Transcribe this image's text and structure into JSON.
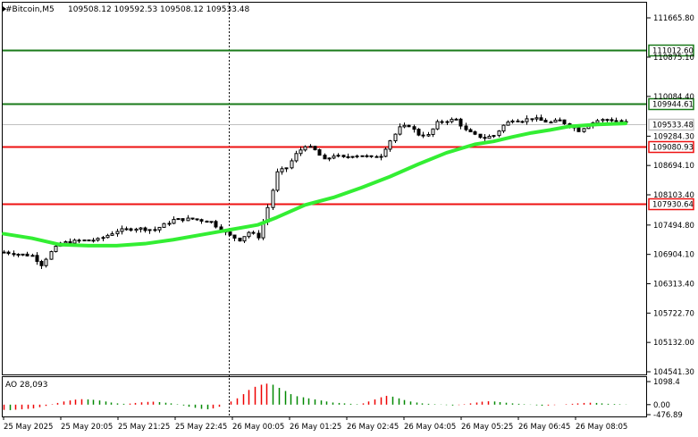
{
  "header": {
    "symbol": "#Bitcoin,M5",
    "ohlc": "109508.12 109592.53 109508.12 109533.48"
  },
  "colors": {
    "candle": "#000000",
    "ma": "#33ee33",
    "resistance": "#1a7a1a",
    "support": "#ee1111",
    "current": "#c0c0c0",
    "ao_up": "#ee0000",
    "ao_down": "#008800"
  },
  "chart_data": [
    {
      "type": "candlestick",
      "y_axis_ticks": [
        "111665.80",
        "110875.10",
        "110084.40",
        "109284.30",
        "108694.10",
        "108103.40",
        "107494.80",
        "106904.10",
        "106313.40",
        "105722.70",
        "105132.00",
        "104541.30"
      ],
      "ylim": [
        104541.3,
        111665.8
      ],
      "x_axis_labels": [
        "25 May 2025",
        "25 May 20:05",
        "25 May 21:25",
        "25 May 22:45",
        "26 May 00:05",
        "26 May 01:25",
        "26 May 02:45",
        "26 May 04:05",
        "26 May 05:25",
        "26 May 06:45",
        "26 May 08:05"
      ],
      "horizontal_levels": [
        {
          "kind": "resistance",
          "label": "111012.60",
          "value": 111012.6
        },
        {
          "kind": "resistance",
          "label": "109944.61",
          "value": 109944.61
        },
        {
          "kind": "current",
          "label": "109533.48",
          "value": 109533.48
        },
        {
          "kind": "support",
          "label": "109080.93",
          "value": 109080.93
        },
        {
          "kind": "support",
          "label": "107930.64",
          "value": 107930.64
        }
      ],
      "price_path": [
        [
          0,
          106950
        ],
        [
          4,
          106900
        ],
        [
          6,
          106880
        ],
        [
          8,
          106700
        ],
        [
          10,
          106950
        ],
        [
          12,
          107130
        ],
        [
          16,
          107180
        ],
        [
          20,
          107200
        ],
        [
          24,
          107380
        ],
        [
          28,
          107430
        ],
        [
          32,
          107400
        ],
        [
          36,
          107600
        ],
        [
          40,
          107620
        ],
        [
          44,
          107560
        ],
        [
          46,
          107400
        ],
        [
          48,
          107280
        ],
        [
          50,
          107200
        ],
        [
          52,
          107350
        ],
        [
          54,
          107260
        ],
        [
          56,
          107850
        ],
        [
          58,
          108550
        ],
        [
          60,
          108650
        ],
        [
          62,
          108920
        ],
        [
          64,
          109100
        ],
        [
          66,
          109000
        ],
        [
          68,
          108800
        ],
        [
          70,
          108900
        ],
        [
          72,
          108850
        ],
        [
          74,
          108900
        ],
        [
          76,
          108900
        ],
        [
          78,
          108850
        ],
        [
          80,
          108900
        ],
        [
          82,
          109200
        ],
        [
          84,
          109450
        ],
        [
          86,
          109500
        ],
        [
          88,
          109320
        ],
        [
          90,
          109300
        ],
        [
          92,
          109550
        ],
        [
          94,
          109600
        ],
        [
          96,
          109620
        ],
        [
          98,
          109400
        ],
        [
          100,
          109300
        ],
        [
          102,
          109250
        ],
        [
          104,
          109300
        ],
        [
          106,
          109500
        ],
        [
          108,
          109620
        ],
        [
          110,
          109600
        ],
        [
          112,
          109650
        ],
        [
          114,
          109600
        ],
        [
          116,
          109560
        ],
        [
          118,
          109600
        ],
        [
          120,
          109500
        ],
        [
          122,
          109400
        ],
        [
          124,
          109520
        ],
        [
          126,
          109600
        ],
        [
          128,
          109620
        ],
        [
          130,
          109600
        ],
        [
          132,
          109560
        ]
      ],
      "moving_average": [
        [
          0,
          107320
        ],
        [
          6,
          107230
        ],
        [
          12,
          107100
        ],
        [
          18,
          107080
        ],
        [
          24,
          107080
        ],
        [
          30,
          107120
        ],
        [
          36,
          107200
        ],
        [
          42,
          107300
        ],
        [
          48,
          107400
        ],
        [
          54,
          107500
        ],
        [
          58,
          107650
        ],
        [
          64,
          107900
        ],
        [
          70,
          108050
        ],
        [
          76,
          108250
        ],
        [
          82,
          108470
        ],
        [
          88,
          108720
        ],
        [
          94,
          108950
        ],
        [
          100,
          109120
        ],
        [
          104,
          109180
        ],
        [
          108,
          109270
        ],
        [
          112,
          109350
        ],
        [
          116,
          109410
        ],
        [
          120,
          109480
        ],
        [
          126,
          109520
        ],
        [
          132,
          109540
        ]
      ]
    },
    {
      "type": "bar",
      "title": "AO 28,093",
      "y_axis_ticks": [
        "1098.4",
        "0.00",
        "-476.89"
      ],
      "ylim": [
        -476.89,
        1098.4
      ],
      "values_sampled": [
        -250,
        -260,
        -240,
        -220,
        -200,
        -180,
        -120,
        -60,
        20,
        80,
        150,
        200,
        240,
        260,
        250,
        230,
        200,
        150,
        100,
        60,
        40,
        50,
        80,
        110,
        130,
        140,
        120,
        90,
        60,
        20,
        -40,
        -100,
        -150,
        -200,
        -220,
        -180,
        -100,
        0,
        150,
        300,
        500,
        700,
        850,
        950,
        1000,
        950,
        800,
        650,
        500,
        400,
        350,
        300,
        250,
        200,
        150,
        100,
        80,
        60,
        40,
        20,
        60,
        150,
        250,
        350,
        420,
        380,
        300,
        220,
        150,
        100,
        60,
        40,
        20,
        10,
        -20,
        -40,
        -20,
        20,
        60,
        100,
        140,
        160,
        150,
        120,
        90,
        60,
        40,
        20,
        -10,
        -30,
        -50,
        -40,
        -20,
        0,
        20,
        40,
        60,
        80,
        90,
        80,
        60,
        40,
        30,
        20,
        10
      ]
    }
  ]
}
